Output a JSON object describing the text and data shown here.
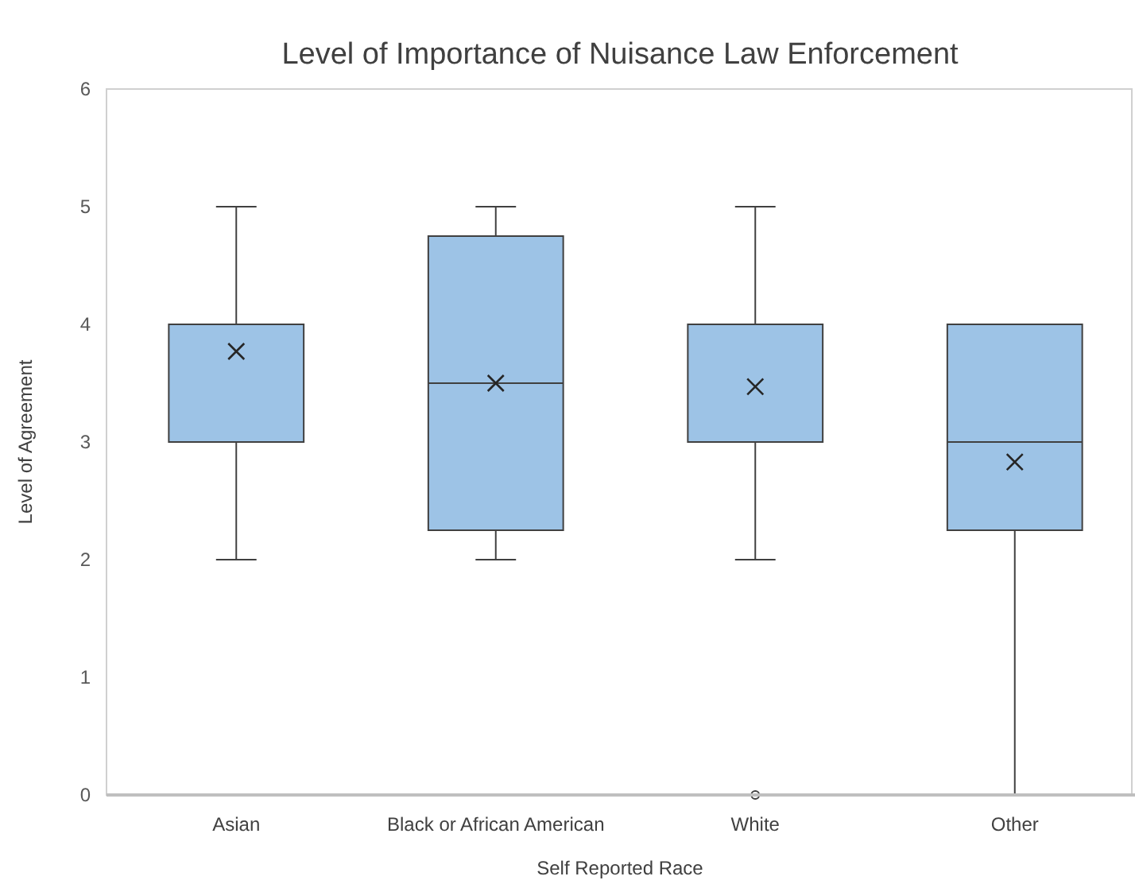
{
  "chart_data": {
    "type": "box",
    "title": "Level of Importance of Nuisance Law Enforcement",
    "xlabel": "Self Reported Race",
    "ylabel": "Level of Agreement",
    "categories": [
      "Asian",
      "Black or African American",
      "White",
      "Other"
    ],
    "color": "#9dc3e6",
    "boxes": [
      {
        "low": 2,
        "q1": 3,
        "median": 4,
        "q3": 4,
        "high": 5,
        "mean": 3.77
      },
      {
        "low": 2,
        "q1": 2.25,
        "median": 3.5,
        "q3": 4.75,
        "high": 5,
        "mean": 3.5
      },
      {
        "low": 2,
        "q1": 3,
        "median": 4,
        "q3": 4,
        "high": 5,
        "mean": 3.47,
        "outliers": [
          0
        ]
      },
      {
        "low": 0,
        "q1": 2.25,
        "median": 3,
        "q3": 4,
        "high": 4,
        "mean": 2.83
      }
    ],
    "ylim": [
      0,
      6
    ],
    "yticks": [
      0,
      1,
      2,
      3,
      4,
      5,
      6
    ],
    "grid": false
  }
}
